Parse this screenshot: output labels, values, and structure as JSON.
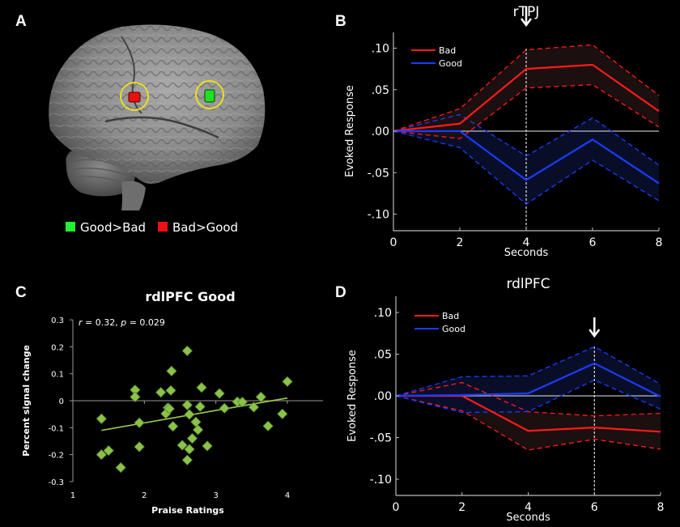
{
  "panels": {
    "A": {
      "letter": "A",
      "legend": [
        {
          "label": "Good>Bad",
          "color": "#22dd22"
        },
        {
          "label": "Bad>Good",
          "color": "#ee1111"
        }
      ]
    },
    "B": {
      "letter": "B"
    },
    "C": {
      "letter": "C"
    },
    "D": {
      "letter": "D"
    }
  },
  "colors": {
    "bad": "#ff1a1a",
    "good": "#1a3cff",
    "bad_fill": "#1c1010",
    "good_fill": "#0a0f2a",
    "scatter": "#8bc34a",
    "circle": "#e8e020"
  },
  "chart_data": [
    {
      "id": "B",
      "type": "line",
      "title": "rTPJ",
      "xlabel": "Seconds",
      "ylabel": "Evoked Response",
      "x": [
        0,
        2,
        4,
        6,
        8
      ],
      "xlim": [
        0,
        8
      ],
      "ylim": [
        -0.12,
        0.12
      ],
      "xticks": [
        "0",
        "2",
        "4",
        "6",
        "8"
      ],
      "yticks": [
        {
          "v": 0.1,
          "label": ".10"
        },
        {
          "v": 0.05,
          "label": ".05"
        },
        {
          "v": 0.0,
          "label": ".00"
        },
        {
          "v": -0.05,
          "label": "-.05"
        },
        {
          "v": -0.1,
          "label": "-.10"
        }
      ],
      "legend": [
        "Bad",
        "Good"
      ],
      "legend_position": "top-left",
      "marker_x": 4,
      "series": [
        {
          "name": "Bad",
          "values": [
            0.0,
            0.009,
            0.075,
            0.08,
            0.024
          ],
          "upper": [
            0.0,
            0.027,
            0.098,
            0.104,
            0.043
          ],
          "lower": [
            0.0,
            -0.009,
            0.052,
            0.056,
            0.005
          ]
        },
        {
          "name": "Good",
          "values": [
            0.0,
            0.0,
            -0.059,
            -0.01,
            -0.063
          ],
          "upper": [
            0.0,
            0.02,
            -0.03,
            0.016,
            -0.041
          ],
          "lower": [
            0.0,
            -0.02,
            -0.088,
            -0.035,
            -0.084
          ]
        }
      ]
    },
    {
      "id": "C",
      "type": "scatter",
      "title": "rdlPFC  Good",
      "xlabel": "Praise Ratings",
      "ylabel": "Percent signal change",
      "annotation": "r = 0.32, p = 0.029",
      "xlim": [
        1,
        4
      ],
      "ylim": [
        -0.3,
        0.3
      ],
      "xticks": [
        "1",
        "2",
        "3",
        "4"
      ],
      "yticks": [
        "0.3",
        "0.2",
        "0.1",
        "0",
        "-0.1",
        "-0.2",
        "-0.3"
      ],
      "fit_line": {
        "x": [
          1.4,
          4.0
        ],
        "y": [
          -0.11,
          0.01
        ]
      },
      "points": [
        [
          1.4,
          -0.067
        ],
        [
          1.4,
          -0.2
        ],
        [
          1.5,
          -0.185
        ],
        [
          1.67,
          -0.248
        ],
        [
          1.87,
          0.04
        ],
        [
          1.87,
          0.014
        ],
        [
          1.93,
          -0.082
        ],
        [
          1.93,
          -0.171
        ],
        [
          2.23,
          0.031
        ],
        [
          2.3,
          -0.048
        ],
        [
          2.33,
          -0.026
        ],
        [
          2.35,
          -0.03
        ],
        [
          2.37,
          0.038
        ],
        [
          2.38,
          0.11
        ],
        [
          2.4,
          -0.095
        ],
        [
          2.53,
          -0.165
        ],
        [
          2.6,
          0.185
        ],
        [
          2.6,
          -0.016
        ],
        [
          2.6,
          -0.22
        ],
        [
          2.63,
          -0.051
        ],
        [
          2.63,
          -0.18
        ],
        [
          2.67,
          -0.14
        ],
        [
          2.72,
          -0.079
        ],
        [
          2.75,
          -0.108
        ],
        [
          2.78,
          -0.022
        ],
        [
          2.8,
          0.049
        ],
        [
          2.88,
          -0.168
        ],
        [
          3.05,
          0.027
        ],
        [
          3.12,
          -0.028
        ],
        [
          3.3,
          -0.004
        ],
        [
          3.37,
          -0.005
        ],
        [
          3.53,
          -0.024
        ],
        [
          3.63,
          0.014
        ],
        [
          3.73,
          -0.094
        ],
        [
          3.93,
          -0.049
        ],
        [
          4.0,
          0.071
        ]
      ]
    },
    {
      "id": "D",
      "type": "line",
      "title": "rdlPFC",
      "xlabel": "Seconds",
      "ylabel": "Evoked Response",
      "x": [
        0,
        2,
        4,
        6,
        8
      ],
      "xlim": [
        0,
        8
      ],
      "ylim": [
        -0.12,
        0.12
      ],
      "xticks": [
        "0",
        "2",
        "4",
        "6",
        "8"
      ],
      "yticks": [
        {
          "v": 0.1,
          "label": ".10"
        },
        {
          "v": 0.05,
          "label": ".05"
        },
        {
          "v": 0.0,
          "label": ".00"
        },
        {
          "v": -0.05,
          "label": "-.05"
        },
        {
          "v": -0.1,
          "label": "-.10"
        }
      ],
      "legend": [
        "Bad",
        "Good"
      ],
      "legend_position": "top-left",
      "marker_x": 6,
      "series": [
        {
          "name": "Bad",
          "values": [
            0.0,
            0.0,
            -0.042,
            -0.038,
            -0.043
          ],
          "upper": [
            0.0,
            0.016,
            -0.019,
            -0.024,
            -0.021
          ],
          "lower": [
            0.0,
            -0.018,
            -0.065,
            -0.052,
            -0.064
          ]
        },
        {
          "name": "Good",
          "values": [
            0.0,
            0.001,
            0.003,
            0.039,
            -0.001
          ],
          "upper": [
            0.0,
            0.023,
            0.024,
            0.059,
            0.014
          ],
          "lower": [
            0.0,
            -0.02,
            -0.019,
            0.019,
            -0.016
          ]
        }
      ]
    }
  ]
}
